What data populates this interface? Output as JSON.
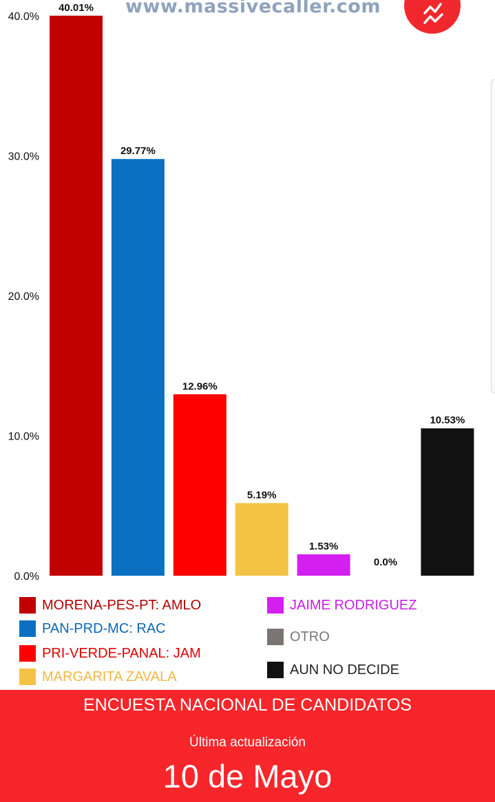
{
  "header": {
    "watermark": "www.massivecaller.com",
    "logo_icon": "trend-lines-icon",
    "logo_color": "#f0282d"
  },
  "chart_data": {
    "type": "bar",
    "categories": [
      "MORENA-PES-PT: AMLO",
      "PAN-PRD-MC: RAC",
      "PRI-VERDE-PANAL: JAM",
      "MARGARITA ZAVALA",
      "JAIME RODRIGUEZ",
      "OTRO",
      "AUN NO DECIDE"
    ],
    "values": [
      40.01,
      29.77,
      12.96,
      5.19,
      1.53,
      0.0,
      10.53
    ],
    "value_labels": [
      "40.01%",
      "29.77%",
      "12.96%",
      "5.19%",
      "1.53%",
      "0.0%",
      "10.53%"
    ],
    "colors": [
      "#c10000",
      "#0b70c1",
      "#ff0000",
      "#f4c245",
      "#d41ff1",
      "#7a7573",
      "#111111"
    ],
    "ylim": [
      0,
      40
    ],
    "yticks": [
      0,
      10,
      20,
      30,
      40
    ],
    "ytick_labels": [
      "0.0%",
      "10.0%",
      "20.0%",
      "30.0%",
      "40.0%"
    ],
    "grid": false,
    "legend_position": "bottom"
  },
  "legend": {
    "items": [
      {
        "label": "MORENA-PES-PT: AMLO",
        "color": "#c10000",
        "text_color": "#b40000"
      },
      {
        "label": "PAN-PRD-MC: RAC",
        "color": "#0b70c1",
        "text_color": "#0b66b3"
      },
      {
        "label": "PRI-VERDE-PANAL: JAM",
        "color": "#ff0000",
        "text_color": "#e00000"
      },
      {
        "label": "MARGARITA ZAVALA",
        "color": "#f4c245",
        "text_color": "#f0b840"
      },
      {
        "label": "JAIME RODRIGUEZ",
        "color": "#d41ff1",
        "text_color": "#c81ee6"
      },
      {
        "label": "OTRO",
        "color": "#7a7573",
        "text_color": "#777777"
      },
      {
        "label": "AUN NO DECIDE",
        "color": "#111111",
        "text_color": "#222222"
      }
    ]
  },
  "banner": {
    "title": "ENCUESTA NACIONAL DE CANDIDATOS",
    "subtitle": "Última actualización",
    "date": "10 de Mayo"
  }
}
